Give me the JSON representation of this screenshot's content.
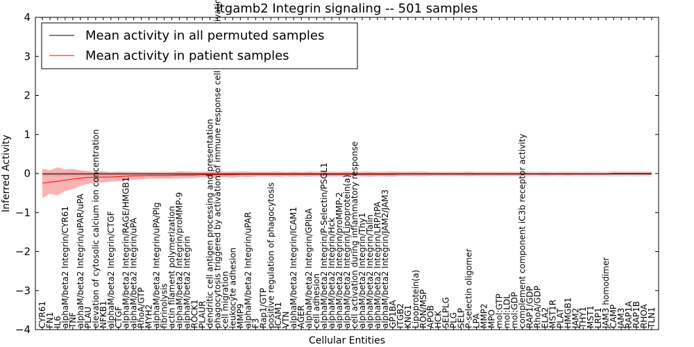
{
  "chart_data": {
    "type": "line",
    "title": "Itgamb2 Integrin signaling -- 501 samples",
    "xlabel": "Cellular Entities",
    "ylabel": "Inferred Activity",
    "ylim": [
      -4,
      4
    ],
    "yticks": [
      -4,
      -3,
      -2,
      -1,
      0,
      1,
      2,
      3,
      4
    ],
    "grid": false,
    "legend_position": "top-left",
    "categories": [
      "CYR61",
      "FN1",
      "IL6",
      "alphaM/beta2 Integrin/CYR61",
      "TNF",
      "alphaM/beta2 Integrin/uPAR/uPA",
      "PLAU",
      "elevation of cytosolic calcium ion concentration",
      "NFKB1",
      "alphaM/beta2 Integrin/CTGF",
      "CTGF",
      "alphaM/beta2 Integrin/RAGE/HMGB1",
      "alphaM/beta2 Integrin/uPA",
      "RhoA/GTP",
      "MYH2",
      "alphaM/beta2 Integrin/uPA/Plg",
      "fibrinolysis",
      "actin filament polymerization",
      "alphaM/beta2 Integrin/proMMP-9",
      "alphaM/beta2 Integrin",
      "ROCK1",
      "PLAUR",
      "dendritic cell antigen processing and presentation",
      "phagocytosis triggered by activation of immune response cell surface activating receptor",
      "cell migration",
      "leukocyte adhesion",
      "MMP9",
      "alphaM/beta2 Integrin/uPAR",
      "F3",
      "Rap1/GTP",
      "positive regulation of phagocytosis",
      "ICAM1",
      "VTN",
      "alphaM/beta2 Integrin/ICAM1",
      "AGER",
      "alphaM/beta2 Integrin/GPIbA",
      "cell adhesion",
      "alphaM/beta2 Integrin/P-Selectin/PSGL1",
      "alphaM/beta2 Integrin/Hck",
      "alphaM/beta2 Integrin/proMMP-2",
      "alphaM/beta2 Integrin/Lipoprotein(a)",
      "cell activation during inflammatory response",
      "alphaM/beta2 Integrin/Thy1",
      "alphaM/beta2 Integrin/Talin",
      "alphaM/beta2 Integrin/LRP/tPA",
      "alphaM/beta2 Integrin/JAM2/JAM3",
      "GP1BA",
      "ITGB2",
      "KNG1",
      "Lipoprotein(a)",
      "RON/MSP",
      "APOB",
      "HCK",
      "SELPLG",
      "PLG",
      "SELP",
      "P-selectin oligomer",
      "LPA",
      "MMP2",
      "MPO",
      "mol:GTP",
      "mol:LDL",
      "mol:GDP",
      "complement component iC3b receptor activity",
      "RAP1/GDP",
      "RhoA/GDP",
      "ELA2",
      "MST1R",
      "PLAT",
      "HMGB1",
      "JAM2",
      "THY1",
      "MST1",
      "LRP1",
      "JAM3 homodimer",
      "CAMP",
      "JAM3",
      "RAP1A",
      "RAP1B",
      "RHOA",
      "TLN1"
    ],
    "series": [
      {
        "name": "Mean activity in all permuted samples",
        "color": "#000000",
        "band_color": "#bbbbbb",
        "values": [
          -0.01,
          -0.01,
          -0.01,
          -0.01,
          -0.01,
          -0.01,
          -0.01,
          -0.01,
          -0.01,
          -0.01,
          -0.01,
          -0.01,
          -0.01,
          -0.01,
          -0.01,
          -0.01,
          -0.01,
          -0.01,
          -0.01,
          -0.01,
          -0.01,
          -0.01,
          -0.01,
          -0.01,
          -0.01,
          -0.01,
          -0.01,
          -0.01,
          -0.01,
          -0.01,
          -0.01,
          -0.01,
          -0.01,
          -0.01,
          -0.01,
          -0.01,
          -0.01,
          -0.01,
          -0.01,
          -0.01,
          -0.01,
          -0.01,
          -0.01,
          -0.01,
          -0.01,
          -0.01,
          -0.01,
          -0.01,
          -0.01,
          -0.01,
          -0.01,
          -0.01,
          -0.01,
          -0.01,
          -0.01,
          -0.01,
          -0.01,
          -0.01,
          -0.01,
          -0.01,
          -0.01,
          -0.01,
          -0.01,
          -0.01,
          -0.01,
          -0.01,
          -0.01,
          -0.01,
          -0.01,
          -0.01,
          -0.01,
          -0.01,
          -0.01,
          -0.01,
          -0.01,
          -0.01,
          -0.01,
          -0.01,
          -0.01,
          -0.01,
          -0.01
        ],
        "spread": [
          0.06,
          0.06,
          0.06,
          0.06,
          0.07,
          0.07,
          0.06,
          0.06,
          0.07,
          0.06,
          0.06,
          0.07,
          0.06,
          0.06,
          0.06,
          0.06,
          0.07,
          0.06,
          0.07,
          0.07,
          0.06,
          0.07,
          0.06,
          0.07,
          0.07,
          0.06,
          0.07,
          0.06,
          0.06,
          0.07,
          0.06,
          0.07,
          0.06,
          0.07,
          0.06,
          0.07,
          0.07,
          0.06,
          0.07,
          0.06,
          0.07,
          0.06,
          0.07,
          0.07,
          0.06,
          0.07,
          0.07,
          0.06,
          0.06,
          0.07,
          0.07,
          0.06,
          0.07,
          0.06,
          0.07,
          0.06,
          0.07,
          0.06,
          0.07,
          0.07,
          0.06,
          0.07,
          0.06,
          0.07,
          0.07,
          0.06,
          0.07,
          0.06,
          0.07,
          0.06,
          0.07,
          0.06,
          0.07,
          0.07,
          0.06,
          0.07,
          0.07,
          0.06,
          0.07,
          0.06,
          0.07
        ]
      },
      {
        "name": "Mean activity in patient samples",
        "color": "#ff0000",
        "band_color": "#f58080",
        "values": [
          -0.25,
          -0.22,
          -0.2,
          -0.17,
          -0.14,
          -0.12,
          -0.1,
          -0.1,
          -0.09,
          -0.09,
          -0.08,
          -0.07,
          -0.06,
          -0.06,
          -0.05,
          -0.05,
          -0.05,
          -0.05,
          -0.04,
          -0.04,
          -0.04,
          -0.03,
          -0.03,
          -0.03,
          -0.03,
          -0.03,
          -0.02,
          -0.02,
          -0.02,
          -0.02,
          -0.02,
          -0.02,
          -0.02,
          -0.02,
          -0.02,
          -0.02,
          -0.02,
          -0.02,
          -0.02,
          -0.02,
          -0.02,
          -0.02,
          -0.02,
          -0.02,
          -0.02,
          -0.02,
          -0.02,
          -0.01,
          -0.01,
          -0.01,
          -0.01,
          -0.01,
          -0.01,
          -0.01,
          -0.01,
          -0.01,
          -0.01,
          -0.01,
          -0.01,
          -0.01,
          -0.01,
          -0.01,
          -0.01,
          -0.01,
          -0.01,
          -0.01,
          -0.01,
          -0.01,
          -0.01,
          -0.01,
          -0.01,
          -0.01,
          -0.01,
          -0.01,
          -0.01,
          0.0,
          0.0,
          0.0,
          0.0,
          0.0,
          0.0
        ],
        "spread": [
          0.38,
          0.3,
          0.36,
          0.28,
          0.26,
          0.2,
          0.16,
          0.14,
          0.14,
          0.12,
          0.12,
          0.1,
          0.1,
          0.09,
          0.08,
          0.08,
          0.08,
          0.08,
          0.09,
          0.08,
          0.08,
          0.06,
          0.08,
          0.07,
          0.06,
          0.08,
          0.06,
          0.07,
          0.06,
          0.05,
          0.06,
          0.06,
          0.05,
          0.06,
          0.05,
          0.06,
          0.05,
          0.06,
          0.05,
          0.05,
          0.06,
          0.05,
          0.05,
          0.06,
          0.05,
          0.05,
          0.06,
          0.05,
          0.05,
          0.05,
          0.05,
          0.04,
          0.04,
          0.04,
          0.04,
          0.04,
          0.05,
          0.04,
          0.04,
          0.04,
          0.04,
          0.04,
          0.04,
          0.04,
          0.03,
          0.03,
          0.04,
          0.03,
          0.03,
          0.04,
          0.03,
          0.03,
          0.03,
          0.03,
          0.03,
          0.03,
          0.03,
          0.03,
          0.03,
          0.03,
          0.03
        ]
      }
    ]
  }
}
